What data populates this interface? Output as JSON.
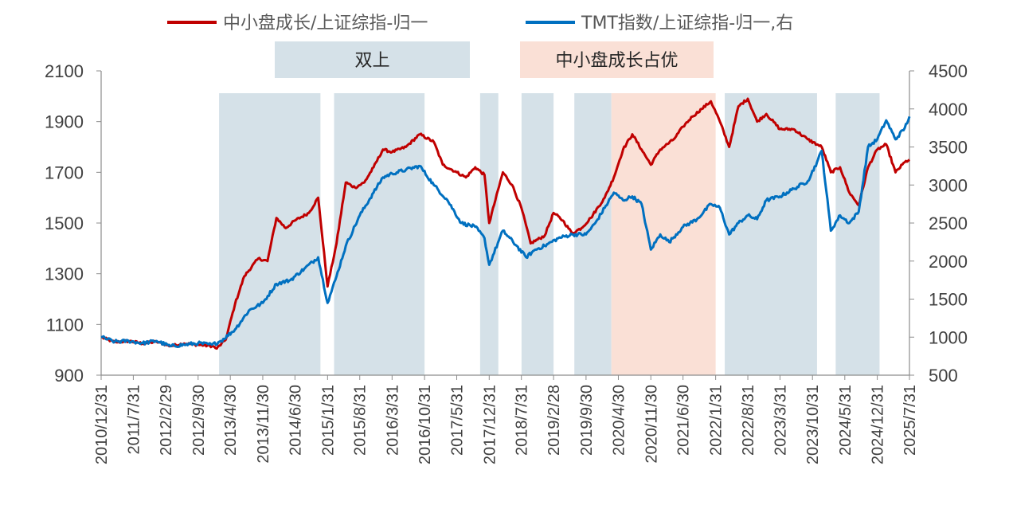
{
  "chart_data": {
    "type": "line",
    "title": "",
    "legend_position": "top",
    "x_ticks": [
      "2010/12/31",
      "2011/7/31",
      "2012/2/29",
      "2012/9/30",
      "2013/4/30",
      "2013/11/30",
      "2014/6/30",
      "2015/1/31",
      "2015/8/31",
      "2016/3/31",
      "2016/10/31",
      "2017/5/31",
      "2017/12/31",
      "2018/7/31",
      "2019/2/28",
      "2019/9/30",
      "2020/4/30",
      "2020/11/30",
      "2021/6/30",
      "2022/1/31",
      "2022/8/31",
      "2023/3/31",
      "2023/10/31",
      "2024/5/31",
      "2024/12/31",
      "2025/7/31"
    ],
    "y_left": {
      "ticks": [
        900,
        1100,
        1300,
        1500,
        1700,
        1900,
        2100
      ],
      "range": [
        900,
        2100
      ]
    },
    "y_right": {
      "ticks": [
        500,
        1000,
        1500,
        2000,
        2500,
        3000,
        3500,
        4000,
        4500
      ],
      "range": [
        500,
        4500
      ]
    },
    "legend": [
      {
        "label": "中小盘成长/上证综指-归一",
        "color": "#c00000",
        "axis": "left"
      },
      {
        "label": "TMT指数/上证综指-归一,右",
        "color": "#0070c0",
        "axis": "right"
      }
    ],
    "series": [
      {
        "name": "中小盘成长/上证综指-归一",
        "color": "#c00000",
        "axis": "left",
        "points": [
          [
            "2010/12/31",
            1050
          ],
          [
            "2011/3/31",
            1030
          ],
          [
            "2011/6/30",
            1035
          ],
          [
            "2011/9/30",
            1025
          ],
          [
            "2011/12/31",
            1032
          ],
          [
            "2012/3/31",
            1015
          ],
          [
            "2012/6/30",
            1025
          ],
          [
            "2012/9/30",
            1020
          ],
          [
            "2012/12/31",
            1015
          ],
          [
            "2013/1/31",
            1005
          ],
          [
            "2013/3/31",
            1040
          ],
          [
            "2013/5/31",
            1180
          ],
          [
            "2013/7/31",
            1290
          ],
          [
            "2013/10/31",
            1360
          ],
          [
            "2013/12/31",
            1350
          ],
          [
            "2014/2/28",
            1520
          ],
          [
            "2014/4/30",
            1480
          ],
          [
            "2014/6/30",
            1510
          ],
          [
            "2014/9/30",
            1540
          ],
          [
            "2014/11/30",
            1600
          ],
          [
            "2015/1/31",
            1250
          ],
          [
            "2015/3/31",
            1420
          ],
          [
            "2015/5/31",
            1660
          ],
          [
            "2015/7/31",
            1640
          ],
          [
            "2015/9/30",
            1660
          ],
          [
            "2015/11/30",
            1720
          ],
          [
            "2016/1/31",
            1790
          ],
          [
            "2016/3/31",
            1780
          ],
          [
            "2016/6/30",
            1800
          ],
          [
            "2016/9/30",
            1850
          ],
          [
            "2016/12/31",
            1820
          ],
          [
            "2017/2/28",
            1730
          ],
          [
            "2017/5/31",
            1700
          ],
          [
            "2017/7/31",
            1680
          ],
          [
            "2017/9/30",
            1720
          ],
          [
            "2017/11/30",
            1690
          ],
          [
            "2017/12/31",
            1500
          ],
          [
            "2018/3/31",
            1700
          ],
          [
            "2018/5/31",
            1650
          ],
          [
            "2018/7/31",
            1560
          ],
          [
            "2018/9/30",
            1420
          ],
          [
            "2018/12/31",
            1450
          ],
          [
            "2019/2/28",
            1540
          ],
          [
            "2019/4/30",
            1510
          ],
          [
            "2019/6/30",
            1460
          ],
          [
            "2019/8/31",
            1480
          ],
          [
            "2019/10/31",
            1520
          ],
          [
            "2020/1/31",
            1600
          ],
          [
            "2020/3/31",
            1680
          ],
          [
            "2020/5/31",
            1790
          ],
          [
            "2020/7/31",
            1850
          ],
          [
            "2020/9/30",
            1790
          ],
          [
            "2020/11/30",
            1730
          ],
          [
            "2021/1/31",
            1790
          ],
          [
            "2021/4/30",
            1830
          ],
          [
            "2021/6/30",
            1880
          ],
          [
            "2021/8/31",
            1920
          ],
          [
            "2021/10/31",
            1950
          ],
          [
            "2021/12/31",
            1980
          ],
          [
            "2022/2/28",
            1900
          ],
          [
            "2022/4/30",
            1800
          ],
          [
            "2022/6/30",
            1960
          ],
          [
            "2022/8/31",
            1990
          ],
          [
            "2022/10/31",
            1900
          ],
          [
            "2022/12/31",
            1930
          ],
          [
            "2023/3/31",
            1870
          ],
          [
            "2023/6/30",
            1870
          ],
          [
            "2023/9/30",
            1830
          ],
          [
            "2023/11/30",
            1810
          ],
          [
            "2023/12/31",
            1800
          ],
          [
            "2024/2/29",
            1700
          ],
          [
            "2024/4/30",
            1720
          ],
          [
            "2024/6/30",
            1620
          ],
          [
            "2024/8/31",
            1570
          ],
          [
            "2024/10/31",
            1720
          ],
          [
            "2024/12/31",
            1790
          ],
          [
            "2025/2/28",
            1810
          ],
          [
            "2025/4/30",
            1700
          ],
          [
            "2025/6/30",
            1740
          ],
          [
            "2025/7/31",
            1750
          ]
        ]
      },
      {
        "name": "TMT指数/上证综指-归一,右",
        "color": "#0070c0",
        "axis": "right",
        "points": [
          [
            "2010/12/31",
            1000
          ],
          [
            "2011/3/31",
            940
          ],
          [
            "2011/6/30",
            950
          ],
          [
            "2011/9/30",
            920
          ],
          [
            "2011/12/31",
            950
          ],
          [
            "2012/3/31",
            880
          ],
          [
            "2012/6/30",
            900
          ],
          [
            "2012/9/30",
            920
          ],
          [
            "2012/12/31",
            900
          ],
          [
            "2013/2/28",
            950
          ],
          [
            "2013/5/31",
            1100
          ],
          [
            "2013/8/31",
            1350
          ],
          [
            "2013/11/30",
            1450
          ],
          [
            "2014/2/28",
            1700
          ],
          [
            "2014/5/31",
            1750
          ],
          [
            "2014/8/31",
            1900
          ],
          [
            "2014/11/30",
            2050
          ],
          [
            "2015/1/31",
            1450
          ],
          [
            "2015/3/31",
            1800
          ],
          [
            "2015/5/31",
            2200
          ],
          [
            "2015/8/31",
            2600
          ],
          [
            "2015/11/30",
            2900
          ],
          [
            "2016/1/31",
            3100
          ],
          [
            "2016/3/31",
            3150
          ],
          [
            "2016/6/30",
            3200
          ],
          [
            "2016/9/30",
            3250
          ],
          [
            "2016/12/31",
            3000
          ],
          [
            "2017/3/31",
            2800
          ],
          [
            "2017/6/30",
            2500
          ],
          [
            "2017/9/30",
            2450
          ],
          [
            "2017/11/30",
            2300
          ],
          [
            "2017/12/31",
            1950
          ],
          [
            "2018/3/31",
            2400
          ],
          [
            "2018/6/30",
            2200
          ],
          [
            "2018/8/31",
            2050
          ],
          [
            "2018/10/31",
            2150
          ],
          [
            "2018/12/31",
            2200
          ],
          [
            "2019/3/31",
            2300
          ],
          [
            "2019/6/30",
            2350
          ],
          [
            "2019/9/30",
            2350
          ],
          [
            "2019/11/30",
            2500
          ],
          [
            "2020/1/31",
            2700
          ],
          [
            "2020/3/31",
            2900
          ],
          [
            "2020/5/31",
            2800
          ],
          [
            "2020/7/31",
            2850
          ],
          [
            "2020/9/30",
            2750
          ],
          [
            "2020/11/30",
            2150
          ],
          [
            "2021/1/31",
            2350
          ],
          [
            "2021/3/31",
            2250
          ],
          [
            "2021/6/30",
            2450
          ],
          [
            "2021/9/30",
            2550
          ],
          [
            "2021/12/31",
            2750
          ],
          [
            "2022/2/28",
            2700
          ],
          [
            "2022/4/30",
            2350
          ],
          [
            "2022/6/30",
            2500
          ],
          [
            "2022/8/31",
            2600
          ],
          [
            "2022/10/31",
            2550
          ],
          [
            "2022/12/31",
            2800
          ],
          [
            "2023/3/31",
            2850
          ],
          [
            "2023/6/30",
            2950
          ],
          [
            "2023/9/30",
            3050
          ],
          [
            "2023/11/30",
            3300
          ],
          [
            "2023/12/31",
            3450
          ],
          [
            "2024/2/29",
            2400
          ],
          [
            "2024/4/30",
            2600
          ],
          [
            "2024/6/30",
            2500
          ],
          [
            "2024/8/31",
            2650
          ],
          [
            "2024/10/31",
            3500
          ],
          [
            "2024/12/31",
            3600
          ],
          [
            "2025/2/28",
            3850
          ],
          [
            "2025/4/30",
            3600
          ],
          [
            "2025/6/30",
            3750
          ],
          [
            "2025/7/31",
            3900
          ]
        ]
      }
    ],
    "shaded_periods": [
      {
        "start": "2013/2/15",
        "end": "2014/12/15",
        "color": "#d5e1e8"
      },
      {
        "start": "2015/3/15",
        "end": "2016/10/31",
        "color": "#d5e1e8"
      },
      {
        "start": "2017/11/1",
        "end": "2018/3/1",
        "color": "#d5e1e8"
      },
      {
        "start": "2018/8/1",
        "end": "2019/2/28",
        "color": "#d5e1e8"
      },
      {
        "start": "2019/7/15",
        "end": "2020/3/15",
        "color": "#d5e1e8"
      },
      {
        "start": "2020/3/15",
        "end": "2022/1/31",
        "color": "#fae0d6"
      },
      {
        "start": "2022/4/1",
        "end": "2023/11/30",
        "color": "#d5e1e8"
      },
      {
        "start": "2024/4/1",
        "end": "2025/1/15",
        "color": "#d5e1e8"
      }
    ],
    "annotations": [
      {
        "text": "双上",
        "color": "#d5e1e8"
      },
      {
        "text": "中小盘成长占优",
        "color": "#fae0d6"
      }
    ],
    "grid": false
  }
}
